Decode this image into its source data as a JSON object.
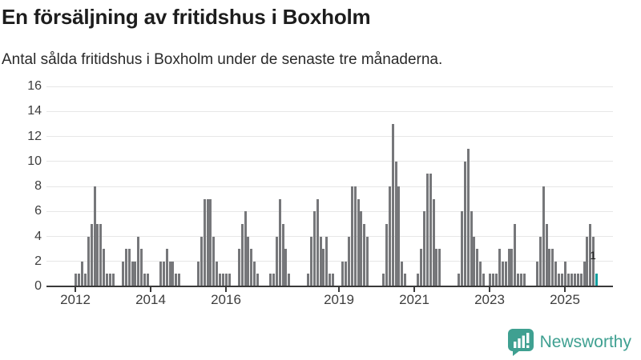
{
  "chart_data": {
    "type": "bar",
    "title": "En försäljning av fritidshus i Boxholm",
    "subtitle": "Antal sålda fritidshus i Boxholm under de senaste tre månaderna.",
    "xlabel": "",
    "ylabel": "",
    "x_frequency": "monthly",
    "x_start": "2012-01",
    "x_end": "2025-11",
    "ylim": [
      0,
      16
    ],
    "yticks": [
      0,
      2,
      4,
      6,
      8,
      10,
      12,
      14,
      16
    ],
    "xtick_years": [
      2012,
      2014,
      2016,
      2019,
      2021,
      2023,
      2025
    ],
    "grid": true,
    "legend_position": "none",
    "bar_color": "#76777a",
    "values_by_year": {
      "2012": [
        1,
        1,
        2,
        1,
        4,
        5,
        8,
        5,
        5,
        3,
        1,
        1
      ],
      "2013": [
        1,
        0,
        0,
        2,
        3,
        3,
        2,
        2,
        4,
        3,
        1,
        1
      ],
      "2014": [
        0,
        0,
        0,
        2,
        2,
        3,
        2,
        2,
        1,
        1,
        0,
        0
      ],
      "2015": [
        0,
        0,
        0,
        2,
        4,
        7,
        7,
        7,
        4,
        2,
        1,
        1
      ],
      "2016": [
        1,
        1,
        0,
        0,
        3,
        5,
        6,
        4,
        3,
        2,
        1,
        0
      ],
      "2017": [
        0,
        0,
        1,
        1,
        4,
        7,
        5,
        3,
        1,
        0,
        0,
        0
      ],
      "2018": [
        0,
        0,
        1,
        4,
        6,
        7,
        4,
        3,
        4,
        1,
        1,
        0
      ],
      "2019": [
        0,
        2,
        2,
        4,
        8,
        8,
        7,
        6,
        5,
        4,
        0,
        0
      ],
      "2020": [
        0,
        0,
        1,
        5,
        8,
        13,
        10,
        8,
        2,
        1,
        0,
        0
      ],
      "2021": [
        0,
        1,
        3,
        6,
        9,
        9,
        7,
        3,
        3,
        0,
        0,
        0
      ],
      "2022": [
        0,
        0,
        1,
        6,
        10,
        11,
        6,
        4,
        3,
        2,
        1,
        0
      ],
      "2023": [
        1,
        1,
        1,
        3,
        2,
        2,
        3,
        3,
        5,
        1,
        1,
        1
      ],
      "2024": [
        0,
        0,
        0,
        2,
        4,
        8,
        5,
        3,
        3,
        2,
        1,
        1
      ],
      "2025": [
        2,
        1,
        1,
        1,
        1,
        1,
        2,
        4,
        5,
        4,
        1
      ]
    },
    "highlight": {
      "position": "last",
      "color": "#0d9e9e",
      "label": "1"
    },
    "last_value_label": "1"
  },
  "branding": {
    "logo_text": "Newsworthy",
    "logo_color": "#3fa091"
  }
}
